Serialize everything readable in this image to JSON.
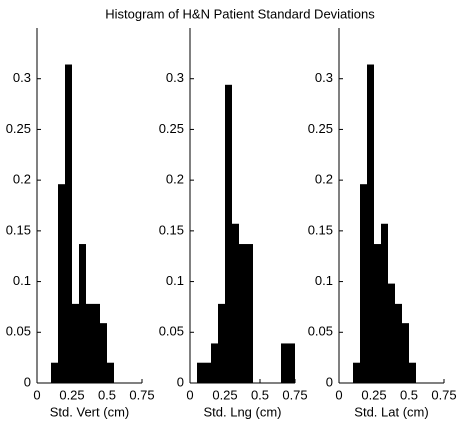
{
  "title": "Histogram of H&N Patient Standard Deviations",
  "chart_data": [
    {
      "type": "histogram",
      "xlabel": "Std. Vert (cm)",
      "color": "#000000",
      "bins": [
        0.1,
        0.15,
        0.2,
        0.25,
        0.3,
        0.35,
        0.4,
        0.45,
        0.5,
        0.55
      ],
      "values": [
        0.02,
        0.196,
        0.314,
        0.078,
        0.137,
        0.078,
        0.078,
        0.059,
        0.02
      ],
      "xlim": [
        0,
        0.75
      ],
      "xticks": [
        0,
        0.25,
        0.5,
        0.75
      ],
      "ylim": [
        0,
        0.35
      ],
      "yticks": [
        0,
        0.05,
        0.1,
        0.15,
        0.2,
        0.25,
        0.3
      ]
    },
    {
      "type": "histogram",
      "xlabel": "Std. Lng (cm)",
      "color": "#000000",
      "bins": [
        0.05,
        0.1,
        0.15,
        0.2,
        0.25,
        0.3,
        0.35,
        0.4,
        0.45,
        0.5,
        0.55,
        0.6,
        0.65,
        0.7,
        0.75
      ],
      "values": [
        0.02,
        0.02,
        0.039,
        0.078,
        0.294,
        0.157,
        0.137,
        0.137,
        0,
        0,
        0,
        0,
        0.039,
        0.039
      ],
      "xlim": [
        0,
        0.75
      ],
      "xticks": [
        0,
        0.25,
        0.5,
        0.75
      ],
      "ylim": [
        0,
        0.35
      ],
      "yticks": [
        0,
        0.05,
        0.1,
        0.15,
        0.2,
        0.25,
        0.3
      ]
    },
    {
      "type": "histogram",
      "xlabel": "Std. Lat (cm)",
      "color": "#000000",
      "bins": [
        0.1,
        0.15,
        0.2,
        0.25,
        0.3,
        0.35,
        0.4,
        0.45,
        0.5,
        0.55
      ],
      "values": [
        0.02,
        0.196,
        0.314,
        0.137,
        0.157,
        0.098,
        0.078,
        0.059,
        0.02
      ],
      "xlim": [
        0,
        0.75
      ],
      "xticks": [
        0,
        0.25,
        0.5,
        0.75
      ],
      "ylim": [
        0,
        0.35
      ],
      "yticks": [
        0,
        0.05,
        0.1,
        0.15,
        0.2,
        0.25,
        0.3
      ]
    }
  ]
}
